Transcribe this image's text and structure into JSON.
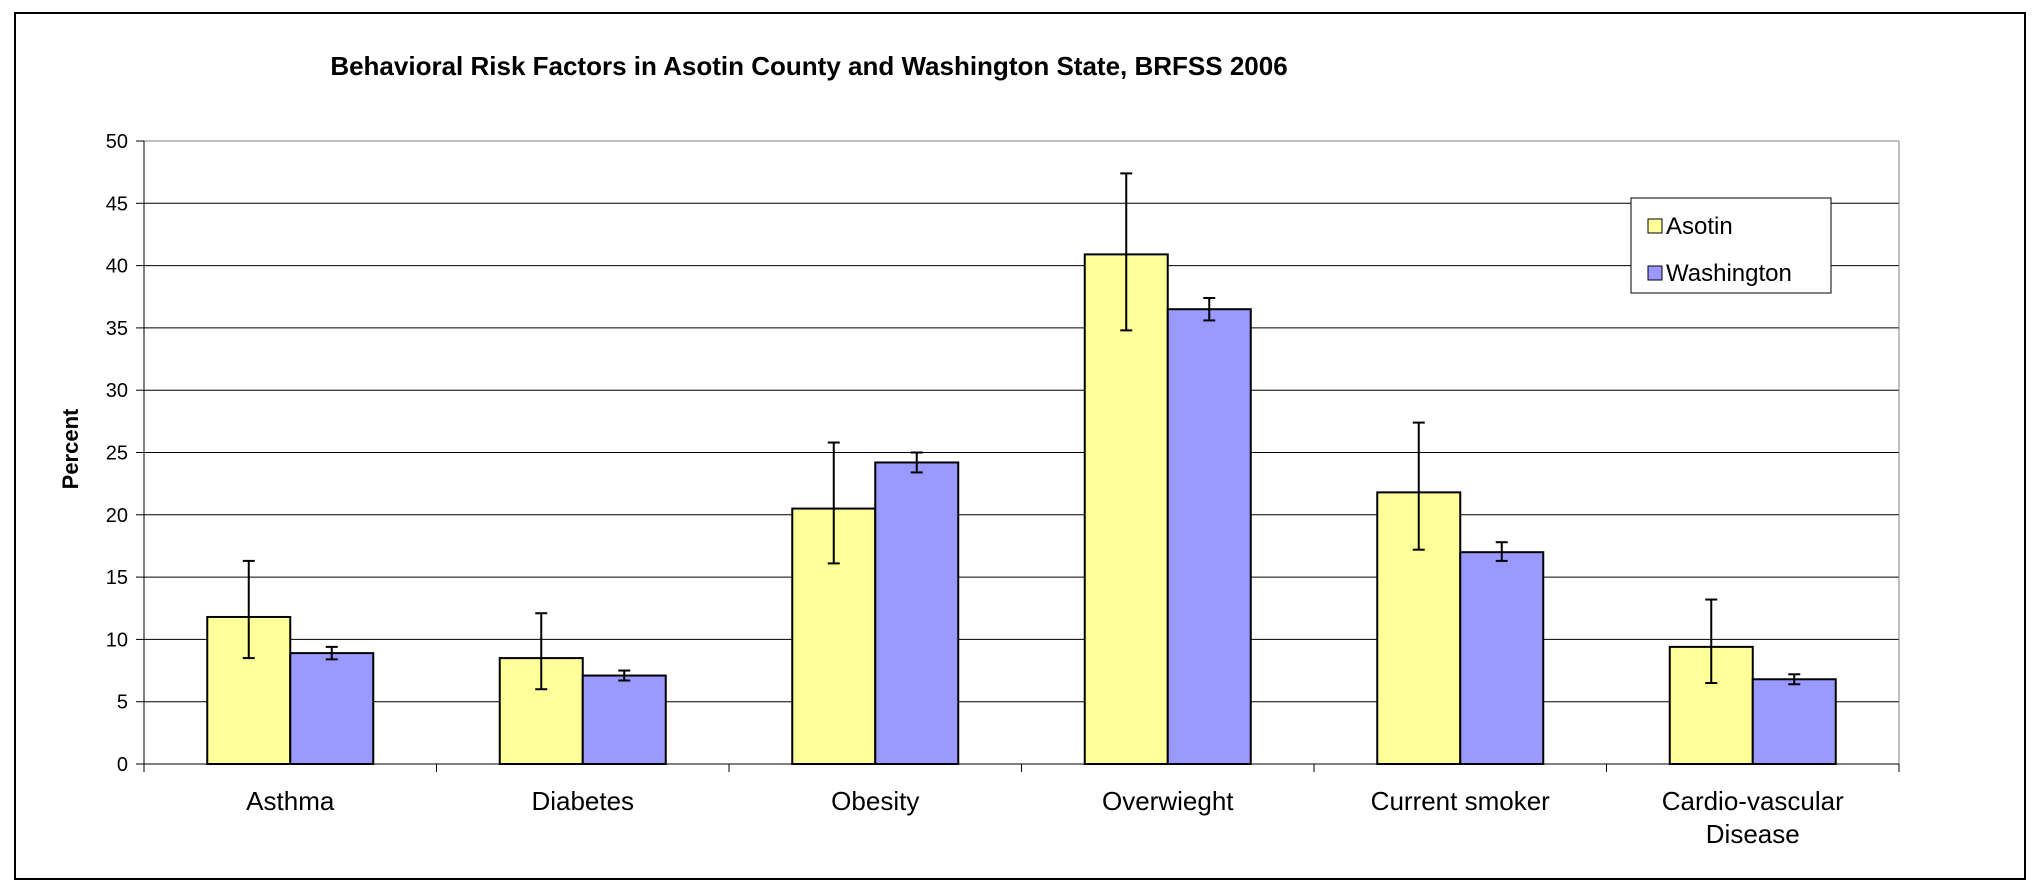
{
  "chart_data": {
    "type": "bar",
    "title": "Behavioral Risk Factors in Asotin County and Washington State, BRFSS 2006",
    "xlabel": "",
    "ylabel": "Percent",
    "ylim": [
      0,
      50
    ],
    "yticks": [
      0,
      5,
      10,
      15,
      20,
      25,
      30,
      35,
      40,
      45,
      50
    ],
    "grid": true,
    "legend_position": "top-right",
    "categories": [
      "Asthma",
      "Diabetes",
      "Obesity",
      "Overwieght",
      "Current smoker",
      "Cardio-vascular Disease"
    ],
    "series": [
      {
        "name": "Asotin",
        "color": "#FFFF99",
        "values": [
          11.8,
          8.5,
          20.5,
          40.9,
          21.8,
          9.4
        ],
        "error_low": [
          8.5,
          6.0,
          16.1,
          34.8,
          17.2,
          6.5
        ],
        "error_high": [
          16.3,
          12.1,
          25.8,
          47.4,
          27.4,
          13.2
        ]
      },
      {
        "name": "Washington",
        "color": "#9999FF",
        "values": [
          8.9,
          7.1,
          24.2,
          36.5,
          17.0,
          6.8
        ],
        "error_low": [
          8.4,
          6.7,
          23.4,
          35.6,
          16.3,
          6.4
        ],
        "error_high": [
          9.4,
          7.5,
          25.0,
          37.4,
          17.8,
          7.2
        ]
      }
    ]
  }
}
